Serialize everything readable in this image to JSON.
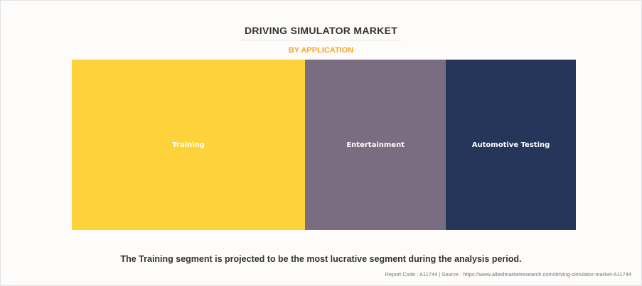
{
  "chart_data": {
    "type": "treemap",
    "title": "DRIVING SIMULATOR MARKET",
    "subtitle": "BY APPLICATION",
    "categories": [
      "Training",
      "Entertainment",
      "Automotive Testing"
    ],
    "values": [
      46.3,
      27.9,
      25.8
    ],
    "colors": [
      "#fdd23b",
      "#7a6d82",
      "#25365a"
    ],
    "legend": "none",
    "grid": false
  },
  "takeaway": "The Training segment is projected to be the most lucrative segment during the analysis period.",
  "footer": "Report Code : A11744  |  Source : https://www.alliedmarketresearch.com/driving-simulator-market-A11744",
  "colors": {
    "subtitle": "#f5a623",
    "title": "#333333"
  }
}
